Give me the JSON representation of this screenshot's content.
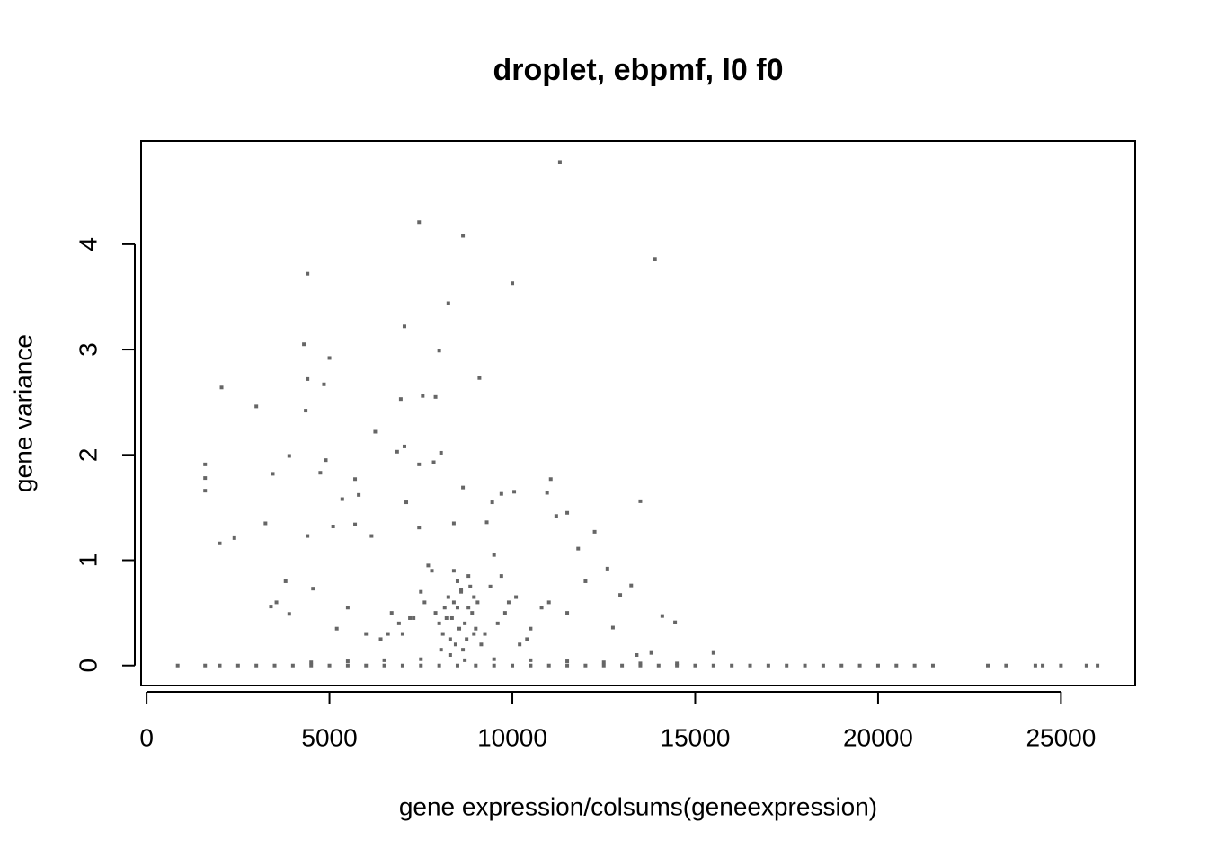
{
  "chart_data": {
    "type": "scatter",
    "title": "droplet, ebpmf, l0 f0",
    "xlabel": "gene expression/colsums(geneexpression)",
    "ylabel": "gene variance",
    "color": "#666666",
    "xlim": [
      -150,
      27030
    ],
    "ylim": [
      -0.19,
      4.98
    ],
    "xticks": [
      0,
      5000,
      10000,
      15000,
      20000,
      25000
    ],
    "yticks": [
      0,
      1,
      2,
      3,
      4
    ],
    "x": [
      11300,
      7450,
      8650,
      13900,
      4400,
      10000,
      8250,
      7050,
      4300,
      8000,
      5000,
      9100,
      4400,
      4850,
      2050,
      6950,
      7550,
      7900,
      3000,
      4350,
      6250,
      7050,
      6850,
      8050,
      3900,
      4900,
      1600,
      7450,
      7850,
      3450,
      4750,
      1600,
      5700,
      11050,
      8650,
      1600,
      5800,
      10950,
      10050,
      5350,
      13500,
      7100,
      9700,
      9450,
      11500,
      2000,
      2400,
      3250,
      4400,
      5100,
      5700,
      6150,
      7450,
      8400,
      9300,
      11200,
      12250,
      11800,
      3400,
      3550,
      3900,
      4550,
      3800,
      14100,
      14450,
      12600,
      13250,
      12950,
      12750,
      13800,
      15500,
      13400,
      8200,
      8400,
      8600,
      8800,
      9000,
      8300,
      8500,
      8700,
      8900,
      8100,
      8250,
      8450,
      8650,
      8850,
      9050,
      8350,
      8550,
      8750,
      8150,
      8950,
      8000,
      9150,
      7900,
      9250,
      8300,
      8600,
      8800,
      8400,
      8700,
      8500,
      7600,
      7300,
      7000,
      6700,
      6400,
      9600,
      9900,
      10200,
      10500,
      10800,
      7800,
      9400,
      7500,
      9700,
      6900,
      10100,
      7200,
      9800,
      6600,
      10400,
      11000,
      11500,
      12000,
      6000,
      5500,
      5200,
      7700,
      9500,
      8050,
      8950,
      850,
      1600,
      2000,
      2500,
      3000,
      3500,
      4000,
      4500,
      5000,
      5500,
      6000,
      6500,
      7000,
      7500,
      8000,
      8500,
      9000,
      9500,
      10000,
      10500,
      11000,
      11500,
      12000,
      12500,
      13000,
      13500,
      14000,
      14500,
      15000,
      15500,
      16000,
      16500,
      17000,
      17500,
      18000,
      18500,
      19000,
      19500,
      20000,
      20500,
      21000,
      21500,
      23000,
      23500,
      24300,
      24500,
      25000,
      25700,
      26000,
      4500,
      5500,
      6500,
      7500,
      9500,
      10500,
      11500,
      12500,
      13500,
      14500
    ],
    "values": [
      4.78,
      4.21,
      4.08,
      3.86,
      3.72,
      3.63,
      3.44,
      3.22,
      3.05,
      2.99,
      2.92,
      2.73,
      2.72,
      2.67,
      2.64,
      2.53,
      2.56,
      2.55,
      2.46,
      2.42,
      2.22,
      2.08,
      2.03,
      2.02,
      1.99,
      1.95,
      1.91,
      1.91,
      1.93,
      1.82,
      1.83,
      1.78,
      1.77,
      1.77,
      1.69,
      1.66,
      1.62,
      1.64,
      1.65,
      1.58,
      1.56,
      1.55,
      1.63,
      1.55,
      1.45,
      1.16,
      1.21,
      1.35,
      1.23,
      1.32,
      1.34,
      1.23,
      1.31,
      1.35,
      1.36,
      1.42,
      1.27,
      1.11,
      0.56,
      0.6,
      0.49,
      0.73,
      0.8,
      0.47,
      0.41,
      0.92,
      0.76,
      0.67,
      0.36,
      0.12,
      0.12,
      0.1,
      0.45,
      0.6,
      0.7,
      0.55,
      0.35,
      0.25,
      0.8,
      0.4,
      0.5,
      0.3,
      0.65,
      0.2,
      0.15,
      0.75,
      0.6,
      0.45,
      0.35,
      0.25,
      0.55,
      0.3,
      0.4,
      0.2,
      0.5,
      0.3,
      0.1,
      0.72,
      0.85,
      0.9,
      0.05,
      0.55,
      0.6,
      0.45,
      0.3,
      0.5,
      0.25,
      0.4,
      0.6,
      0.2,
      0.35,
      0.55,
      0.9,
      0.75,
      0.7,
      0.85,
      0.4,
      0.65,
      0.45,
      0.5,
      0.3,
      0.25,
      0.6,
      0.5,
      0.8,
      0.3,
      0.55,
      0.35,
      0.95,
      1.05,
      0.15,
      0.65,
      0,
      0,
      0,
      0,
      0,
      0,
      0,
      0,
      0,
      0,
      0,
      0,
      0,
      0,
      0,
      0,
      0,
      0,
      0,
      0,
      0,
      0,
      0,
      0,
      0,
      0,
      0,
      0,
      0,
      0,
      0,
      0,
      0,
      0,
      0,
      0,
      0,
      0,
      0,
      0,
      0,
      0,
      0,
      0,
      0,
      0,
      0,
      0,
      0,
      0.03,
      0.04,
      0.05,
      0.06,
      0.06,
      0.05,
      0.04,
      0.03,
      0.02,
      0.02
    ]
  }
}
